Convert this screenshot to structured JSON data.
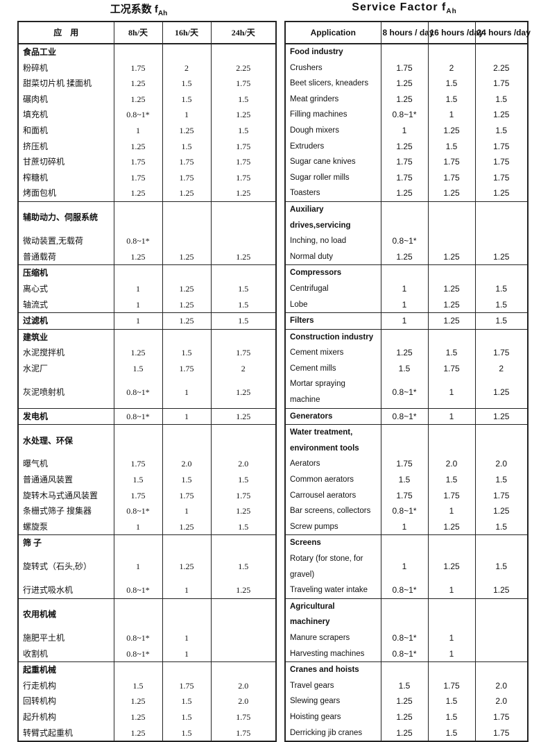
{
  "tables": [
    {
      "title": "工况系数 f",
      "title_sub": "Ah",
      "headers": [
        "应　用",
        "8h/天",
        "16h/天",
        "24h/天"
      ],
      "sections": [
        {
          "name": "食品工业",
          "rows": [
            {
              "label": "粉碎机",
              "values": [
                "1.75",
                "2",
                "2.25"
              ]
            },
            {
              "label": "甜菜切片机 揉面机",
              "values": [
                "1.25",
                "1.5",
                "1.75"
              ]
            },
            {
              "label": "碾肉机",
              "values": [
                "1.25",
                "1.5",
                "1.5"
              ]
            },
            {
              "label": "填充机",
              "values": [
                "0.8~1*",
                "1",
                "1.25"
              ]
            },
            {
              "label": "和面机",
              "values": [
                "1",
                "1.25",
                "1.5"
              ]
            },
            {
              "label": "挤压机",
              "values": [
                "1.25",
                "1.5",
                "1.75"
              ]
            },
            {
              "label": "甘蔗切碎机",
              "values": [
                "1.75",
                "1.75",
                "1.75"
              ]
            },
            {
              "label": "榨糖机",
              "values": [
                "1.75",
                "1.75",
                "1.75"
              ]
            },
            {
              "label": "烤面包机",
              "values": [
                "1.25",
                "1.25",
                "1.25"
              ]
            }
          ]
        },
        {
          "name": "辅助动力、伺服系统",
          "rows": [
            {
              "label": "微动装置,无载荷",
              "values": [
                "0.8~1*"
              ]
            },
            {
              "label": "普通载荷",
              "values": [
                "1.25",
                "1.25",
                "1.25"
              ]
            }
          ]
        },
        {
          "name": "压缩机",
          "rows": [
            {
              "label": "离心式",
              "values": [
                "1",
                "1.25",
                "1.5"
              ]
            },
            {
              "label": "轴流式",
              "values": [
                "1",
                "1.25",
                "1.5"
              ]
            }
          ]
        },
        {
          "name": "过滤机",
          "values": [
            "1",
            "1.25",
            "1.5"
          ]
        },
        {
          "name": "建筑业",
          "rows": [
            {
              "label": "水泥搅拌机",
              "values": [
                "1.25",
                "1.5",
                "1.75"
              ]
            },
            {
              "label": "水泥厂",
              "values": [
                "1.5",
                "1.75",
                "2"
              ]
            },
            {
              "label": "灰泥喷射机",
              "values": [
                "0.8~1*",
                "1",
                "1.25"
              ]
            }
          ]
        },
        {
          "name": "发电机",
          "values": [
            "0.8~1*",
            "1",
            "1.25"
          ]
        },
        {
          "name": "水处理、环保",
          "rows": [
            {
              "label": "曝气机",
              "values": [
                "1.75",
                "2.0",
                "2.0"
              ]
            },
            {
              "label": "普通通风装置",
              "values": [
                "1.5",
                "1.5",
                "1.5"
              ]
            },
            {
              "label": "旋转木马式通风装置",
              "values": [
                "1.75",
                "1.75",
                "1.75"
              ]
            },
            {
              "label": "条栅式筛子 搜集器",
              "values": [
                "0.8~1*",
                "1",
                "1.25"
              ]
            },
            {
              "label": "螺旋泵",
              "values": [
                "1",
                "1.25",
                "1.5"
              ]
            }
          ]
        },
        {
          "name": "筛 子",
          "rows": [
            {
              "label": "旋转式（石头,砂）",
              "values": [
                "1",
                "1.25",
                "1.5"
              ]
            },
            {
              "label": "行进式吸水机",
              "values": [
                "0.8~1*",
                "1",
                "1.25"
              ]
            }
          ]
        },
        {
          "name": "农用机械",
          "rows": [
            {
              "label": "施肥平土机",
              "values": [
                "0.8~1*",
                "1"
              ]
            },
            {
              "label": "收割机",
              "values": [
                "0.8~1*",
                "1"
              ]
            }
          ]
        },
        {
          "name": "起重机械",
          "rows": [
            {
              "label": "行走机构",
              "values": [
                "1.5",
                "1.75",
                "2.0"
              ]
            },
            {
              "label": "回转机构",
              "values": [
                "1.25",
                "1.5",
                "2.0"
              ]
            },
            {
              "label": "起升机构",
              "values": [
                "1.25",
                "1.5",
                "1.75"
              ]
            },
            {
              "label": "转臂式起重机",
              "values": [
                "1.25",
                "1.5",
                "1.75"
              ]
            }
          ]
        }
      ]
    },
    {
      "title": "Service Factor f",
      "title_sub": "Ah",
      "headers": [
        "Application",
        "8 hours / day",
        "16 hours /day",
        "24 hours /day"
      ],
      "sections": [
        {
          "name": "Food industry",
          "rows": [
            {
              "label": "Crushers",
              "values": [
                "1.75",
                "2",
                "2.25"
              ]
            },
            {
              "label": "Beet slicers, kneaders",
              "values": [
                "1.25",
                "1.5",
                "1.75"
              ]
            },
            {
              "label": "Meat grinders",
              "values": [
                "1.25",
                "1.5",
                "1.5"
              ]
            },
            {
              "label": "Filling machines",
              "values": [
                "0.8~1*",
                "1",
                "1.25"
              ]
            },
            {
              "label": "Dough mixers",
              "values": [
                "1",
                "1.25",
                "1.5"
              ]
            },
            {
              "label": "Extruders",
              "values": [
                "1.25",
                "1.5",
                "1.75"
              ]
            },
            {
              "label": "Sugar cane knives",
              "values": [
                "1.75",
                "1.75",
                "1.75"
              ]
            },
            {
              "label": "Sugar roller mills",
              "values": [
                "1.75",
                "1.75",
                "1.75"
              ]
            },
            {
              "label": "Toasters",
              "values": [
                "1.25",
                "1.25",
                "1.25"
              ]
            }
          ]
        },
        {
          "name": "Auxiliary drives,servicing",
          "rows": [
            {
              "label": "Inching, no load",
              "values": [
                "0.8~1*"
              ]
            },
            {
              "label": "Normal duty",
              "values": [
                "1.25",
                "1.25",
                "1.25"
              ]
            }
          ]
        },
        {
          "name": "Compressors",
          "rows": [
            {
              "label": "Centrifugal",
              "values": [
                "1",
                "1.25",
                "1.5"
              ]
            },
            {
              "label": "Lobe",
              "values": [
                "1",
                "1.25",
                "1.5"
              ]
            }
          ]
        },
        {
          "name": "Filters",
          "values": [
            "1",
            "1.25",
            "1.5"
          ]
        },
        {
          "name": "Construction industry",
          "rows": [
            {
              "label": "Cement mixers",
              "values": [
                "1.25",
                "1.5",
                "1.75"
              ]
            },
            {
              "label": "Cement mills",
              "values": [
                "1.5",
                "1.75",
                "2"
              ]
            },
            {
              "label": "Mortar spraying machine",
              "values": [
                "0.8~1*",
                "1",
                "1.25"
              ]
            }
          ]
        },
        {
          "name": "Generators",
          "values": [
            "0.8~1*",
            "1",
            "1.25"
          ]
        },
        {
          "name": "Water treatment, environment tools",
          "rows": [
            {
              "label": "Aerators",
              "values": [
                "1.75",
                "2.0",
                "2.0"
              ]
            },
            {
              "label": "Common aerators",
              "values": [
                "1.5",
                "1.5",
                "1.5"
              ]
            },
            {
              "label": "Carrousel aerators",
              "values": [
                "1.75",
                "1.75",
                "1.75"
              ]
            },
            {
              "label": "Bar screens, collectors",
              "values": [
                "0.8~1*",
                "1",
                "1.25"
              ]
            },
            {
              "label": "Screw pumps",
              "values": [
                "1",
                "1.25",
                "1.5"
              ]
            }
          ]
        },
        {
          "name": "Screens",
          "rows": [
            {
              "label": "Rotary (for stone, for gravel)",
              "values": [
                "1",
                "1.25",
                "1.5"
              ]
            },
            {
              "label": "Traveling water intake",
              "values": [
                "0.8~1*",
                "1",
                "1.25"
              ]
            }
          ]
        },
        {
          "name": "Agricultural machinery",
          "rows": [
            {
              "label": "Manure scrapers",
              "values": [
                "0.8~1*",
                "1"
              ]
            },
            {
              "label": "Harvesting machines",
              "values": [
                "0.8~1*",
                "1"
              ]
            }
          ]
        },
        {
          "name": "Cranes and hoists",
          "rows": [
            {
              "label": "Travel gears",
              "values": [
                "1.5",
                "1.75",
                "2.0"
              ]
            },
            {
              "label": "Slewing gears",
              "values": [
                "1.25",
                "1.5",
                "2.0"
              ]
            },
            {
              "label": "Hoisting gears",
              "values": [
                "1.25",
                "1.5",
                "1.75"
              ]
            },
            {
              "label": "Derricking jib cranes",
              "values": [
                "1.25",
                "1.5",
                "1.75"
              ]
            }
          ]
        }
      ]
    }
  ]
}
